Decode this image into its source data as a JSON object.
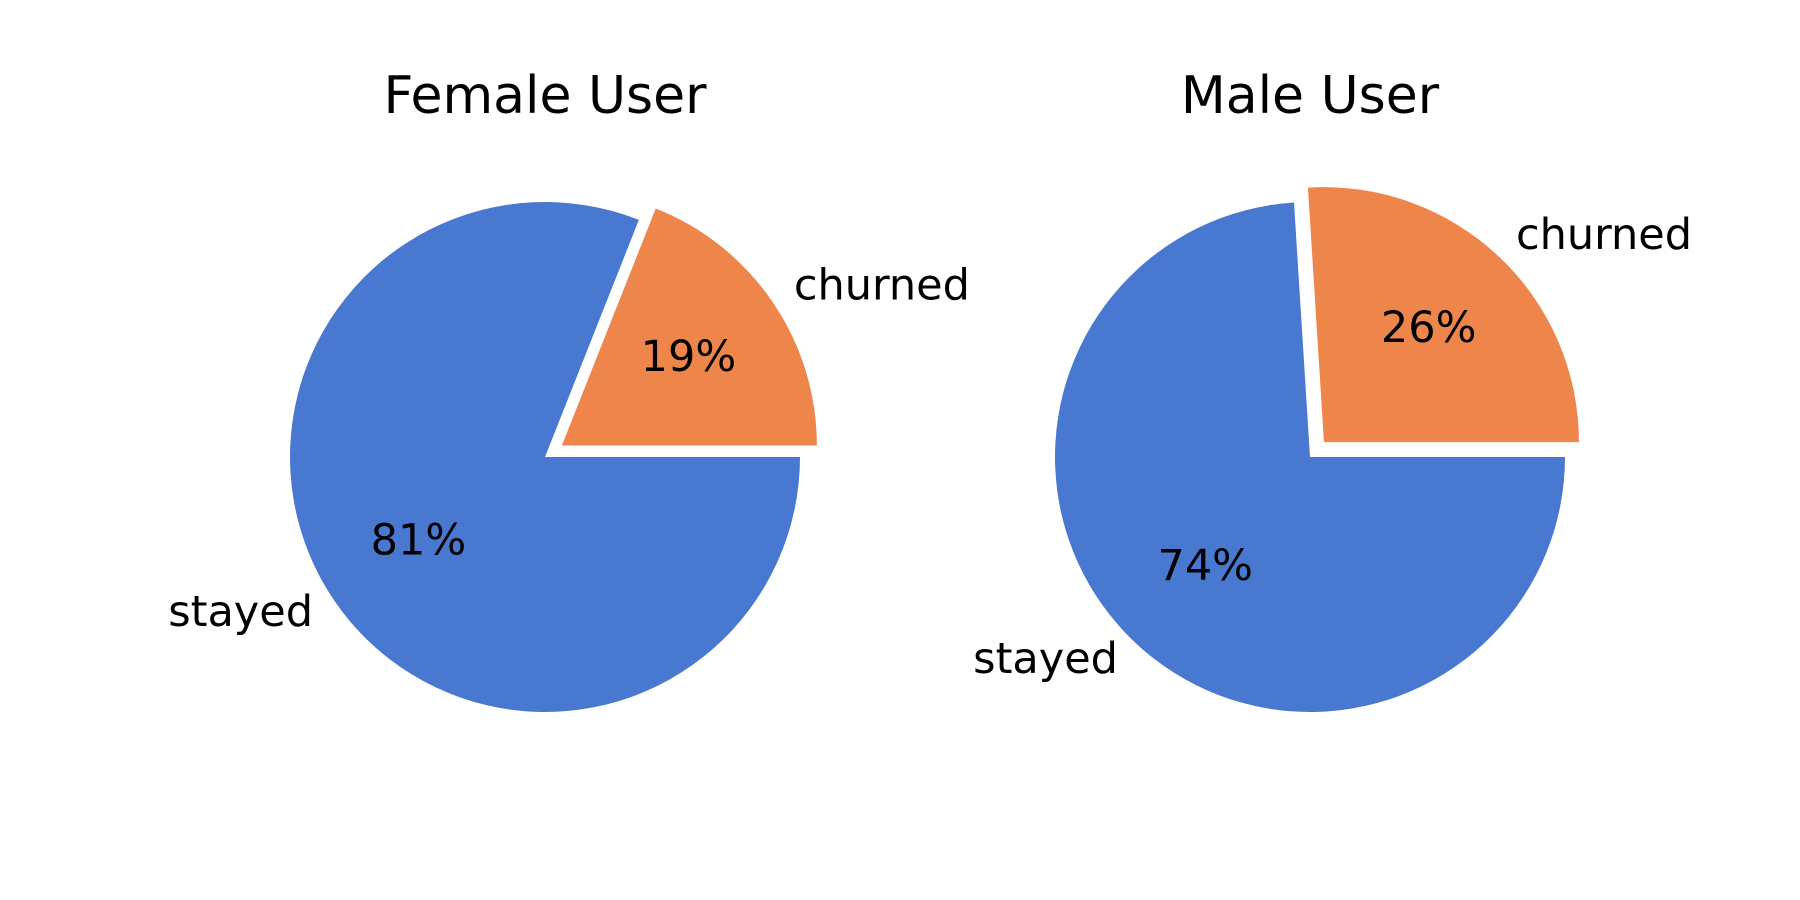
{
  "chart_data": [
    {
      "type": "pie",
      "title": "Female User",
      "labels": [
        "stayed",
        "churned"
      ],
      "values": [
        81,
        19
      ],
      "value_labels": [
        "81%",
        "19%"
      ],
      "explode": [
        0,
        0.08
      ],
      "start_angle_deg": 0,
      "direction": "clockwise",
      "colors": [
        "#4878d0",
        "#ee854a"
      ]
    },
    {
      "type": "pie",
      "title": "Male User",
      "labels": [
        "stayed",
        "churned"
      ],
      "values": [
        74,
        26
      ],
      "value_labels": [
        "74%",
        "26%"
      ],
      "explode": [
        0,
        0.08
      ],
      "start_angle_deg": 0,
      "direction": "clockwise",
      "colors": [
        "#4878d0",
        "#ee854a"
      ]
    }
  ]
}
